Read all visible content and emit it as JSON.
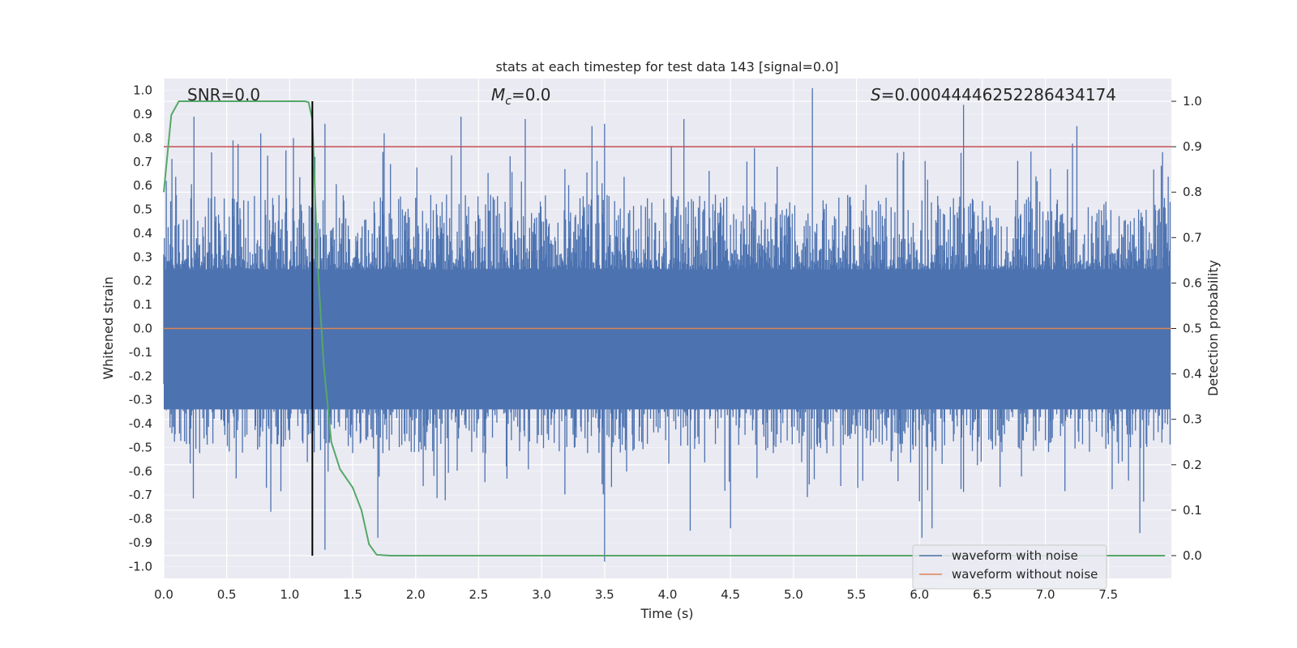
{
  "chart_data": {
    "type": "line",
    "title": "stats at each timestep for test data 143 [signal=0.0]",
    "xlabel": "Time (s)",
    "ylabel": "Whitened strain",
    "y2label": "Detection probability",
    "xlim": [
      0.0,
      8.0
    ],
    "ylim": [
      -1.05,
      1.05
    ],
    "y2lim": [
      -0.05,
      1.05
    ],
    "x_ticks": [
      "0.0",
      "0.5",
      "1.0",
      "1.5",
      "2.0",
      "2.5",
      "3.0",
      "3.5",
      "4.0",
      "4.5",
      "5.0",
      "5.5",
      "6.0",
      "6.5",
      "7.0",
      "7.5"
    ],
    "y_ticks": [
      "1.0",
      "0.9",
      "0.8",
      "0.7",
      "0.6",
      "0.5",
      "0.4",
      "0.3",
      "0.2",
      "0.1",
      "0.0",
      "-0.1",
      "-0.2",
      "-0.3",
      "-0.4",
      "-0.5",
      "-0.6",
      "-0.7",
      "-0.8",
      "-0.9",
      "-1.0"
    ],
    "y2_ticks": [
      "1.0",
      "0.9",
      "0.8",
      "0.7",
      "0.6",
      "0.5",
      "0.4",
      "0.3",
      "0.2",
      "0.1",
      "0.0"
    ],
    "annotations": {
      "snr": "SNR=0.0",
      "mc_symbol": "M",
      "mc_sub": "c",
      "mc_value": "=0.0",
      "s_symbol": "S",
      "s_value": "=0.00044446252286434174"
    },
    "legend": {
      "placement": "lower-right",
      "entries": [
        {
          "label": "waveform with noise",
          "color": "#4c72b0"
        },
        {
          "label": "waveform without noise",
          "color": "#dd8452"
        }
      ]
    },
    "threshold": {
      "value": 0.9,
      "axis": "y2",
      "color": "#c44e52"
    },
    "marker_time": 1.18,
    "series": [
      {
        "name": "waveform with noise",
        "color": "#4c72b0",
        "axis": "y",
        "typical_envelope": [
          -0.42,
          0.45
        ],
        "peaks": [
          {
            "t": 0.02,
            "v": 0.62
          },
          {
            "t": 0.24,
            "v": 0.89
          },
          {
            "t": 0.55,
            "v": 0.79
          },
          {
            "t": 0.77,
            "v": 0.82
          },
          {
            "t": 1.03,
            "v": 0.8
          },
          {
            "t": 1.28,
            "v": 0.86
          },
          {
            "t": 1.75,
            "v": 0.82
          },
          {
            "t": 2.36,
            "v": 0.89
          },
          {
            "t": 2.87,
            "v": 0.88
          },
          {
            "t": 3.4,
            "v": 0.85
          },
          {
            "t": 3.5,
            "v": 0.86
          },
          {
            "t": 4.13,
            "v": 0.88
          },
          {
            "t": 5.15,
            "v": 1.01
          },
          {
            "t": 6.35,
            "v": 0.94
          },
          {
            "t": 7.25,
            "v": 0.85
          },
          {
            "t": 3.5,
            "v": -0.98
          },
          {
            "t": 4.18,
            "v": -0.85
          },
          {
            "t": 6.02,
            "v": -0.88
          },
          {
            "t": 6.1,
            "v": -0.84
          },
          {
            "t": 0.85,
            "v": -0.77
          },
          {
            "t": 1.28,
            "v": -0.93
          },
          {
            "t": 7.75,
            "v": -0.86
          },
          {
            "t": 1.7,
            "v": -0.88
          },
          {
            "t": 4.5,
            "v": -0.84
          }
        ]
      },
      {
        "name": "waveform without noise",
        "color": "#dd8452",
        "axis": "y",
        "constant": 0.0
      },
      {
        "name": "detection probability",
        "color": "#55a868",
        "axis": "y2",
        "x": [
          0.0,
          0.06,
          0.12,
          0.2,
          0.3,
          0.5,
          0.7,
          0.9,
          1.0,
          1.05,
          1.12,
          1.15,
          1.18,
          1.22,
          1.27,
          1.33,
          1.4,
          1.5,
          1.57,
          1.63,
          1.69,
          1.8,
          2.0,
          3.0,
          4.0,
          5.0,
          6.0,
          7.0,
          7.95
        ],
        "y": [
          0.8,
          0.97,
          1.0,
          1.0,
          1.0,
          1.0,
          1.0,
          1.0,
          1.0,
          1.0,
          1.0,
          0.998,
          0.96,
          0.65,
          0.42,
          0.25,
          0.19,
          0.15,
          0.1,
          0.025,
          0.002,
          0.0,
          0.0,
          0.0,
          0.0,
          0.0,
          0.0,
          0.0,
          0.0
        ]
      }
    ]
  }
}
